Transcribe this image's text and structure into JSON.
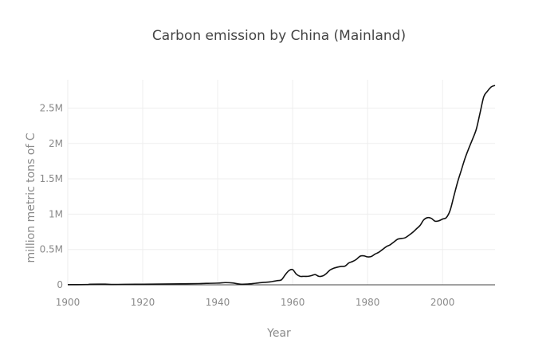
{
  "chart_data": {
    "type": "line",
    "title": "Carbon emission by China (Mainland)",
    "xlabel": "Year",
    "ylabel": "million metric tons of C",
    "xlim": [
      1900,
      2014
    ],
    "ylim": [
      0,
      2900000
    ],
    "x_ticks": [
      1900,
      1920,
      1940,
      1960,
      1980,
      2000
    ],
    "x_tick_labels": [
      "1900",
      "1920",
      "1940",
      "1960",
      "1980",
      "2000"
    ],
    "y_ticks": [
      0,
      500000,
      1000000,
      1500000,
      2000000,
      2500000
    ],
    "y_tick_labels": [
      "0",
      "0.5M",
      "1M",
      "1.5M",
      "2M",
      "2.5M"
    ],
    "grid": true,
    "colors": {
      "line": "#111111",
      "grid": "#eeeeee",
      "zero_line": "#444444"
    },
    "series": [
      {
        "x": [
          1900,
          1905,
          1906,
          1910,
          1912,
          1915,
          1920,
          1925,
          1930,
          1935,
          1937,
          1940,
          1942,
          1944,
          1946,
          1948,
          1950,
          1952,
          1954,
          1956,
          1957,
          1958,
          1959,
          1960,
          1961,
          1962,
          1963,
          1964,
          1965,
          1966,
          1967,
          1968,
          1969,
          1970,
          1971,
          1972,
          1973,
          1974,
          1975,
          1976,
          1977,
          1978,
          1979,
          1980,
          1981,
          1982,
          1983,
          1984,
          1985,
          1986,
          1987,
          1988,
          1989,
          1990,
          1991,
          1992,
          1993,
          1994,
          1995,
          1996,
          1997,
          1998,
          1999,
          2000,
          2001,
          2002,
          2003,
          2004,
          2005,
          2006,
          2007,
          2008,
          2009,
          2010,
          2011,
          2012,
          2013,
          2014
        ],
        "y": [
          2000,
          3000,
          8000,
          9000,
          5000,
          7000,
          8000,
          10000,
          13000,
          17000,
          20000,
          24000,
          31000,
          26000,
          9000,
          10000,
          21000,
          33000,
          42000,
          60000,
          70000,
          140000,
          200000,
          215000,
          150000,
          120000,
          120000,
          120000,
          130000,
          145000,
          120000,
          125000,
          160000,
          210000,
          235000,
          250000,
          260000,
          265000,
          310000,
          330000,
          360000,
          405000,
          410000,
          395000,
          400000,
          435000,
          460000,
          500000,
          540000,
          565000,
          605000,
          645000,
          655000,
          665000,
          700000,
          740000,
          790000,
          840000,
          920000,
          950000,
          940000,
          900000,
          905000,
          930000,
          950000,
          1050000,
          1250000,
          1450000,
          1620000,
          1790000,
          1930000,
          2060000,
          2200000,
          2430000,
          2660000,
          2740000,
          2800000,
          2820000
        ]
      }
    ]
  }
}
